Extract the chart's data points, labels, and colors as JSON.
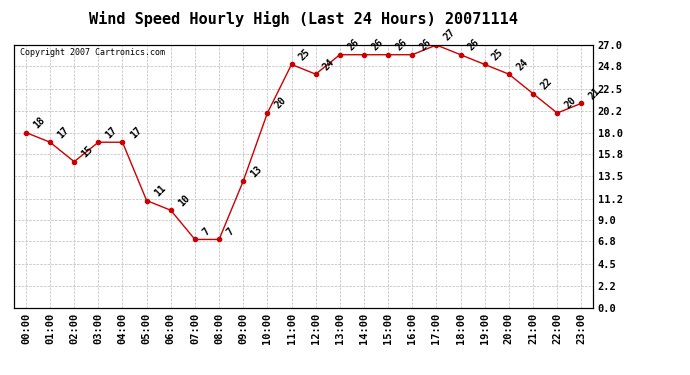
{
  "title": "Wind Speed Hourly High (Last 24 Hours) 20071114",
  "copyright": "Copyright 2007 Cartronics.com",
  "hours": [
    "00:00",
    "01:00",
    "02:00",
    "03:00",
    "04:00",
    "05:00",
    "06:00",
    "07:00",
    "08:00",
    "09:00",
    "10:00",
    "11:00",
    "12:00",
    "13:00",
    "14:00",
    "15:00",
    "16:00",
    "17:00",
    "18:00",
    "19:00",
    "20:00",
    "21:00",
    "22:00",
    "23:00"
  ],
  "values": [
    18,
    17,
    15,
    17,
    17,
    11,
    10,
    7,
    7,
    13,
    20,
    25,
    24,
    26,
    26,
    26,
    26,
    27,
    26,
    25,
    24,
    22,
    20,
    21
  ],
  "line_color": "#cc0000",
  "marker_color": "#cc0000",
  "bg_color": "#ffffff",
  "plot_bg_color": "#ffffff",
  "grid_color": "#bbbbbb",
  "yticks": [
    0.0,
    2.2,
    4.5,
    6.8,
    9.0,
    11.2,
    13.5,
    15.8,
    18.0,
    20.2,
    22.5,
    24.8,
    27.0
  ],
  "ylim": [
    0.0,
    27.0
  ],
  "title_fontsize": 11,
  "label_fontsize": 7.5,
  "annotation_fontsize": 7
}
